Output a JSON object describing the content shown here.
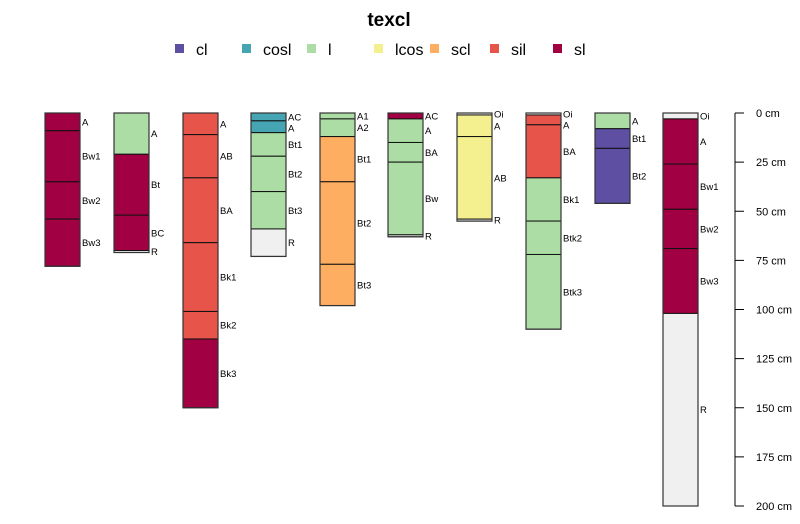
{
  "chart_data": {
    "type": "soil-profile",
    "title": "texcl",
    "legend": {
      "placement": "top",
      "entries": [
        {
          "label": "cl",
          "color": "#5E4FA2"
        },
        {
          "label": "cosl",
          "color": "#45A5B2"
        },
        {
          "label": "l",
          "color": "#ABDDA4"
        },
        {
          "label": "lcos",
          "color": "#F5F08F"
        },
        {
          "label": "scl",
          "color": "#FDAE61"
        },
        {
          "label": "sil",
          "color": "#E6544A"
        },
        {
          "label": "sl",
          "color": "#A10042"
        }
      ]
    },
    "na_color": "#F0F0F0",
    "depth_axis": {
      "range": [
        0,
        200
      ],
      "ticks": [
        "0 cm",
        "25 cm",
        "50 cm",
        "75 cm",
        "100 cm",
        "125 cm",
        "150 cm",
        "175 cm",
        "200 cm"
      ],
      "tick_values": [
        0,
        25,
        50,
        75,
        100,
        125,
        150,
        175,
        200
      ]
    },
    "profiles": [
      {
        "horizons": [
          {
            "name": "A",
            "top": 0,
            "bottom": 9,
            "texcl": "sl"
          },
          {
            "name": "Bw1",
            "top": 9,
            "bottom": 35,
            "texcl": "sl"
          },
          {
            "name": "Bw2",
            "top": 35,
            "bottom": 54,
            "texcl": "sl"
          },
          {
            "name": "Bw3",
            "top": 54,
            "bottom": 78,
            "texcl": "sl"
          }
        ]
      },
      {
        "horizons": [
          {
            "name": "A",
            "top": 0,
            "bottom": 21,
            "texcl": "l"
          },
          {
            "name": "Bt",
            "top": 21,
            "bottom": 52,
            "texcl": "sl"
          },
          {
            "name": "BC",
            "top": 52,
            "bottom": 70,
            "texcl": "sl"
          },
          {
            "name": "R",
            "top": 70,
            "bottom": 71,
            "texcl": null
          }
        ]
      },
      {
        "horizons": [
          {
            "name": "A",
            "top": 0,
            "bottom": 11,
            "texcl": "sil"
          },
          {
            "name": "AB",
            "top": 11,
            "bottom": 33,
            "texcl": "sil"
          },
          {
            "name": "BA",
            "top": 33,
            "bottom": 66,
            "texcl": "sil"
          },
          {
            "name": "Bk1",
            "top": 66,
            "bottom": 101,
            "texcl": "sil"
          },
          {
            "name": "Bk2",
            "top": 101,
            "bottom": 115,
            "texcl": "sil"
          },
          {
            "name": "Bk3",
            "top": 115,
            "bottom": 150,
            "texcl": "sl"
          }
        ]
      },
      {
        "horizons": [
          {
            "name": "AC",
            "top": 0,
            "bottom": 4,
            "texcl": "cosl"
          },
          {
            "name": "A",
            "top": 4,
            "bottom": 10,
            "texcl": "cosl"
          },
          {
            "name": "Bt1",
            "top": 10,
            "bottom": 22,
            "texcl": "l"
          },
          {
            "name": "Bt2",
            "top": 22,
            "bottom": 40,
            "texcl": "l"
          },
          {
            "name": "Bt3",
            "top": 40,
            "bottom": 59,
            "texcl": "l"
          },
          {
            "name": "R",
            "top": 59,
            "bottom": 73,
            "texcl": null
          }
        ]
      },
      {
        "horizons": [
          {
            "name": "A1",
            "top": 0,
            "bottom": 3,
            "texcl": "l"
          },
          {
            "name": "A2",
            "top": 3,
            "bottom": 12,
            "texcl": "l"
          },
          {
            "name": "Bt1",
            "top": 12,
            "bottom": 35,
            "texcl": "scl"
          },
          {
            "name": "Bt2",
            "top": 35,
            "bottom": 77,
            "texcl": "scl"
          },
          {
            "name": "Bt3",
            "top": 77,
            "bottom": 98,
            "texcl": "scl"
          }
        ]
      },
      {
        "horizons": [
          {
            "name": "AC",
            "top": 0,
            "bottom": 3,
            "texcl": "sl"
          },
          {
            "name": "A",
            "top": 3,
            "bottom": 15,
            "texcl": "l"
          },
          {
            "name": "BA",
            "top": 15,
            "bottom": 25,
            "texcl": "l"
          },
          {
            "name": "Bw",
            "top": 25,
            "bottom": 62,
            "texcl": "l"
          },
          {
            "name": "R",
            "top": 62,
            "bottom": 63,
            "texcl": null
          }
        ]
      },
      {
        "horizons": [
          {
            "name": "Oi",
            "top": 0,
            "bottom": 1,
            "texcl": null
          },
          {
            "name": "A",
            "top": 1,
            "bottom": 12,
            "texcl": "lcos"
          },
          {
            "name": "AB",
            "top": 12,
            "bottom": 54,
            "texcl": "lcos"
          },
          {
            "name": "R",
            "top": 54,
            "bottom": 55,
            "texcl": null
          }
        ]
      },
      {
        "horizons": [
          {
            "name": "Oi",
            "top": 0,
            "bottom": 1,
            "texcl": null
          },
          {
            "name": "A",
            "top": 1,
            "bottom": 6,
            "texcl": "sil"
          },
          {
            "name": "BA",
            "top": 6,
            "bottom": 33,
            "texcl": "sil"
          },
          {
            "name": "Bk1",
            "top": 33,
            "bottom": 55,
            "texcl": "l"
          },
          {
            "name": "Btk2",
            "top": 55,
            "bottom": 72,
            "texcl": "l"
          },
          {
            "name": "Btk3",
            "top": 72,
            "bottom": 110,
            "texcl": "l"
          }
        ]
      },
      {
        "horizons": [
          {
            "name": "A",
            "top": 0,
            "bottom": 8,
            "texcl": "l"
          },
          {
            "name": "Bt1",
            "top": 8,
            "bottom": 18,
            "texcl": "cl"
          },
          {
            "name": "Bt2",
            "top": 18,
            "bottom": 46,
            "texcl": "cl"
          }
        ]
      },
      {
        "horizons": [
          {
            "name": "Oi",
            "top": 0,
            "bottom": 3,
            "texcl": null
          },
          {
            "name": "A",
            "top": 3,
            "bottom": 26,
            "texcl": "sl"
          },
          {
            "name": "Bw1",
            "top": 26,
            "bottom": 49,
            "texcl": "sl"
          },
          {
            "name": "Bw2",
            "top": 49,
            "bottom": 69,
            "texcl": "sl"
          },
          {
            "name": "Bw3",
            "top": 69,
            "bottom": 102,
            "texcl": "sl"
          },
          {
            "name": "R",
            "top": 102,
            "bottom": 200,
            "texcl": null
          }
        ]
      }
    ]
  }
}
